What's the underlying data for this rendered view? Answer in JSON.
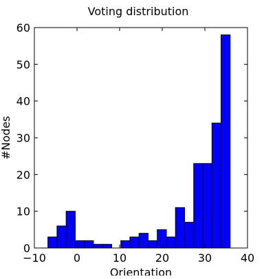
{
  "chart_data": {
    "type": "bar",
    "title": "Voting distribution",
    "xlabel": "Orientation",
    "ylabel": "#Nodes",
    "xlim": [
      -10,
      40
    ],
    "ylim": [
      0,
      60
    ],
    "xticks": [
      -10,
      0,
      10,
      20,
      30,
      40
    ],
    "yticks": [
      0,
      10,
      20,
      30,
      40,
      50,
      60
    ],
    "xtick_labels": [
      "−10",
      "0",
      "10",
      "20",
      "30",
      "40"
    ],
    "ytick_labels": [
      "0",
      "10",
      "20",
      "30",
      "40",
      "50",
      "60"
    ],
    "grid": false,
    "bar_color": "#0000ff",
    "bins": [
      {
        "x0": -6.83,
        "x1": -4.69,
        "value": 3
      },
      {
        "x0": -4.69,
        "x1": -2.55,
        "value": 6
      },
      {
        "x0": -2.55,
        "x1": -0.41,
        "value": 10
      },
      {
        "x0": -0.41,
        "x1": 1.72,
        "value": 2
      },
      {
        "x0": 1.72,
        "x1": 3.86,
        "value": 2
      },
      {
        "x0": 3.86,
        "x1": 6.0,
        "value": 1
      },
      {
        "x0": 6.0,
        "x1": 8.14,
        "value": 1
      },
      {
        "x0": 8.14,
        "x1": 10.28,
        "value": 0
      },
      {
        "x0": 10.28,
        "x1": 12.41,
        "value": 2
      },
      {
        "x0": 12.41,
        "x1": 14.55,
        "value": 3
      },
      {
        "x0": 14.55,
        "x1": 16.69,
        "value": 4
      },
      {
        "x0": 16.69,
        "x1": 18.83,
        "value": 2
      },
      {
        "x0": 18.83,
        "x1": 20.97,
        "value": 5
      },
      {
        "x0": 20.97,
        "x1": 23.1,
        "value": 3
      },
      {
        "x0": 23.1,
        "x1": 25.24,
        "value": 11
      },
      {
        "x0": 25.24,
        "x1": 27.38,
        "value": 7
      },
      {
        "x0": 27.38,
        "x1": 29.52,
        "value": 23
      },
      {
        "x0": 29.52,
        "x1": 31.66,
        "value": 23
      },
      {
        "x0": 31.66,
        "x1": 33.79,
        "value": 34
      },
      {
        "x0": 33.79,
        "x1": 35.93,
        "value": 58
      }
    ]
  }
}
